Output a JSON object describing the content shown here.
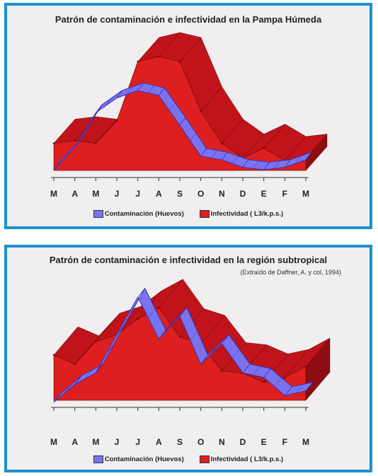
{
  "colors": {
    "frame": "#1f8fd0",
    "panel_bg": "#f0eeee",
    "contamination": "#7b73ee",
    "contamination_dark": "#3a30b0",
    "infectivity_front": "#dd1f1f",
    "infectivity_top": "#c0141a",
    "infectivity_side": "#8e0d12"
  },
  "chart_data": [
    {
      "type": "area",
      "title": "Patrón de contaminación e infectividad en la Pampa Húmeda",
      "categories": [
        "M",
        "A",
        "M",
        "J",
        "J",
        "A",
        "S",
        "O",
        "N",
        "D",
        "E",
        "F",
        "M"
      ],
      "ylim": [
        0,
        100
      ],
      "grid": false,
      "legend_position": "bottom",
      "series": [
        {
          "name": "Contaminación (Huevos)",
          "style": "ribbon",
          "values": [
            4,
            22,
            50,
            62,
            68,
            64,
            40,
            15,
            12,
            6,
            4,
            6,
            12
          ]
        },
        {
          "name": "Infectividad ( L3/k.p.s.)",
          "style": "3d-area",
          "values": [
            22,
            24,
            22,
            40,
            88,
            92,
            88,
            48,
            22,
            10,
            18,
            8,
            10
          ]
        }
      ]
    },
    {
      "type": "area",
      "title": "Patrón de contaminación e infectividad en la región subtropical",
      "subtitle": "(Extraído de Daffner, A. y col, 1994)",
      "categories": [
        "M",
        "A",
        "M",
        "J",
        "J",
        "A",
        "S",
        "O",
        "N",
        "D",
        "E",
        "F",
        "M"
      ],
      "ylim": [
        0,
        100
      ],
      "grid": false,
      "legend_position": "bottom",
      "series": [
        {
          "name": "Contaminación (Huevos)",
          "style": "ribbon",
          "values": [
            2,
            18,
            28,
            62,
            95,
            58,
            78,
            36,
            54,
            28,
            24,
            8,
            12
          ]
        },
        {
          "name": "Infectividad ( L3/k.p.s.)",
          "style": "3d-area",
          "values": [
            40,
            32,
            52,
            58,
            72,
            82,
            56,
            50,
            26,
            24,
            16,
            20,
            30
          ]
        }
      ]
    }
  ]
}
